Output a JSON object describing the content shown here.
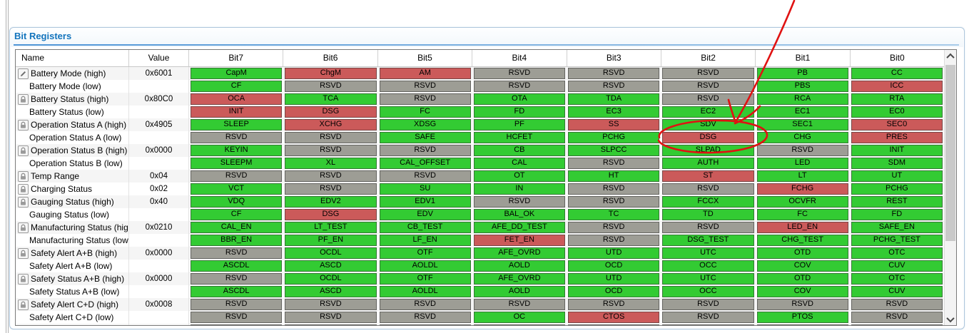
{
  "panel": {
    "title": "Bit Registers"
  },
  "colors": {
    "set": "#cb5a5a",
    "clear": "#33cb33",
    "rsvd": "#9d9d95",
    "title_accent": "#1374bd",
    "annotation": "#e01212"
  },
  "annotation": {
    "shape": "arrow-and-ellipse",
    "highlighted_bit": "DSG"
  },
  "table": {
    "columns": [
      "Name",
      "Value",
      "Bit7",
      "Bit6",
      "Bit5",
      "Bit4",
      "Bit3",
      "Bit2",
      "Bit1",
      "Bit0"
    ],
    "rows": [
      {
        "name": "Battery Mode (high)",
        "value": "0x6001",
        "icon": "pencil",
        "bits": [
          {
            "label": "CapM",
            "state": "clear"
          },
          {
            "label": "ChgM",
            "state": "set"
          },
          {
            "label": "AM",
            "state": "set"
          },
          {
            "label": "RSVD",
            "state": "rsvd"
          },
          {
            "label": "RSVD",
            "state": "rsvd"
          },
          {
            "label": "RSVD",
            "state": "rsvd"
          },
          {
            "label": "PB",
            "state": "clear"
          },
          {
            "label": "CC",
            "state": "clear"
          }
        ]
      },
      {
        "name": "Battery Mode (low)",
        "value": "",
        "icon": null,
        "bits": [
          {
            "label": "CF",
            "state": "clear"
          },
          {
            "label": "RSVD",
            "state": "rsvd"
          },
          {
            "label": "RSVD",
            "state": "rsvd"
          },
          {
            "label": "RSVD",
            "state": "rsvd"
          },
          {
            "label": "RSVD",
            "state": "rsvd"
          },
          {
            "label": "RSVD",
            "state": "rsvd"
          },
          {
            "label": "PBS",
            "state": "clear"
          },
          {
            "label": "ICC",
            "state": "set"
          }
        ]
      },
      {
        "name": "Battery Status (high)",
        "value": "0x80C0",
        "icon": "lock",
        "bits": [
          {
            "label": "OCA",
            "state": "set"
          },
          {
            "label": "TCA",
            "state": "clear"
          },
          {
            "label": "RSVD",
            "state": "rsvd"
          },
          {
            "label": "OTA",
            "state": "clear"
          },
          {
            "label": "TDA",
            "state": "clear"
          },
          {
            "label": "RSVD",
            "state": "rsvd"
          },
          {
            "label": "RCA",
            "state": "clear"
          },
          {
            "label": "RTA",
            "state": "clear"
          }
        ]
      },
      {
        "name": "Battery Status (low)",
        "value": "",
        "icon": null,
        "bits": [
          {
            "label": "INIT",
            "state": "set"
          },
          {
            "label": "DSG",
            "state": "set"
          },
          {
            "label": "FC",
            "state": "clear"
          },
          {
            "label": "FD",
            "state": "clear"
          },
          {
            "label": "EC3",
            "state": "clear"
          },
          {
            "label": "EC2",
            "state": "clear"
          },
          {
            "label": "EC1",
            "state": "clear"
          },
          {
            "label": "EC0",
            "state": "clear"
          }
        ]
      },
      {
        "name": "Operation Status A (high)",
        "value": "0x4905",
        "icon": "lock",
        "bits": [
          {
            "label": "SLEEP",
            "state": "clear"
          },
          {
            "label": "XCHG",
            "state": "set"
          },
          {
            "label": "XDSG",
            "state": "clear"
          },
          {
            "label": "PF",
            "state": "clear"
          },
          {
            "label": "SS",
            "state": "set"
          },
          {
            "label": "SDV",
            "state": "clear"
          },
          {
            "label": "SEC1",
            "state": "clear"
          },
          {
            "label": "SEC0",
            "state": "set"
          }
        ]
      },
      {
        "name": "Operation Status A (low)",
        "value": "",
        "icon": null,
        "bits": [
          {
            "label": "RSVD",
            "state": "rsvd"
          },
          {
            "label": "RSVD",
            "state": "rsvd"
          },
          {
            "label": "SAFE",
            "state": "clear"
          },
          {
            "label": "HCFET",
            "state": "clear"
          },
          {
            "label": "PCHG",
            "state": "clear"
          },
          {
            "label": "DSG",
            "state": "set"
          },
          {
            "label": "CHG",
            "state": "clear"
          },
          {
            "label": "PRES",
            "state": "set"
          }
        ]
      },
      {
        "name": "Operation Status B (high)",
        "value": "0x0000",
        "icon": "lock",
        "bits": [
          {
            "label": "KEYIN",
            "state": "clear"
          },
          {
            "label": "RSVD",
            "state": "rsvd"
          },
          {
            "label": "RSVD",
            "state": "rsvd"
          },
          {
            "label": "CB",
            "state": "clear"
          },
          {
            "label": "SLPCC",
            "state": "clear"
          },
          {
            "label": "SLPAD",
            "state": "clear"
          },
          {
            "label": "RSVD",
            "state": "rsvd"
          },
          {
            "label": "INIT",
            "state": "clear"
          }
        ]
      },
      {
        "name": "Operation Status B (low)",
        "value": "",
        "icon": null,
        "bits": [
          {
            "label": "SLEEPM",
            "state": "clear"
          },
          {
            "label": "XL",
            "state": "clear"
          },
          {
            "label": "CAL_OFFSET",
            "state": "clear"
          },
          {
            "label": "CAL",
            "state": "clear"
          },
          {
            "label": "RSVD",
            "state": "rsvd"
          },
          {
            "label": "AUTH",
            "state": "clear"
          },
          {
            "label": "LED",
            "state": "clear"
          },
          {
            "label": "SDM",
            "state": "clear"
          }
        ]
      },
      {
        "name": "Temp Range",
        "value": "0x04",
        "icon": "lock",
        "bits": [
          {
            "label": "RSVD",
            "state": "rsvd"
          },
          {
            "label": "RSVD",
            "state": "rsvd"
          },
          {
            "label": "RSVD",
            "state": "rsvd"
          },
          {
            "label": "OT",
            "state": "clear"
          },
          {
            "label": "HT",
            "state": "clear"
          },
          {
            "label": "ST",
            "state": "set"
          },
          {
            "label": "LT",
            "state": "clear"
          },
          {
            "label": "UT",
            "state": "clear"
          }
        ]
      },
      {
        "name": "Charging Status",
        "value": "0x02",
        "icon": "lock",
        "bits": [
          {
            "label": "VCT",
            "state": "clear"
          },
          {
            "label": "RSVD",
            "state": "rsvd"
          },
          {
            "label": "SU",
            "state": "clear"
          },
          {
            "label": "IN",
            "state": "clear"
          },
          {
            "label": "RSVD",
            "state": "rsvd"
          },
          {
            "label": "RSVD",
            "state": "rsvd"
          },
          {
            "label": "FCHG",
            "state": "set"
          },
          {
            "label": "PCHG",
            "state": "clear"
          }
        ]
      },
      {
        "name": "Gauging Status (high)",
        "value": "0x40",
        "icon": "lock",
        "bits": [
          {
            "label": "VDQ",
            "state": "clear"
          },
          {
            "label": "EDV2",
            "state": "clear"
          },
          {
            "label": "EDV1",
            "state": "clear"
          },
          {
            "label": "RSVD",
            "state": "rsvd"
          },
          {
            "label": "RSVD",
            "state": "rsvd"
          },
          {
            "label": "FCCX",
            "state": "clear"
          },
          {
            "label": "OCVFR",
            "state": "clear"
          },
          {
            "label": "REST",
            "state": "clear"
          }
        ]
      },
      {
        "name": "Gauging Status (low)",
        "value": "",
        "icon": null,
        "bits": [
          {
            "label": "CF",
            "state": "clear"
          },
          {
            "label": "DSG",
            "state": "set"
          },
          {
            "label": "EDV",
            "state": "clear"
          },
          {
            "label": "BAL_OK",
            "state": "clear"
          },
          {
            "label": "TC",
            "state": "clear"
          },
          {
            "label": "TD",
            "state": "clear"
          },
          {
            "label": "FC",
            "state": "clear"
          },
          {
            "label": "FD",
            "state": "clear"
          }
        ]
      },
      {
        "name": "Manufacturing Status (high)",
        "value": "0x0210",
        "icon": "lock",
        "bits": [
          {
            "label": "CAL_EN",
            "state": "clear"
          },
          {
            "label": "LT_TEST",
            "state": "clear"
          },
          {
            "label": "CB_TEST",
            "state": "clear"
          },
          {
            "label": "AFE_DD_TEST",
            "state": "clear"
          },
          {
            "label": "RSVD",
            "state": "rsvd"
          },
          {
            "label": "RSVD",
            "state": "rsvd"
          },
          {
            "label": "LED_EN",
            "state": "set"
          },
          {
            "label": "SAFE_EN",
            "state": "clear"
          }
        ]
      },
      {
        "name": "Manufacturing Status (low)",
        "value": "",
        "icon": null,
        "bits": [
          {
            "label": "BBR_EN",
            "state": "clear"
          },
          {
            "label": "PF_EN",
            "state": "clear"
          },
          {
            "label": "LF_EN",
            "state": "clear"
          },
          {
            "label": "FET_EN",
            "state": "set"
          },
          {
            "label": "RSVD",
            "state": "rsvd"
          },
          {
            "label": "DSG_TEST",
            "state": "clear"
          },
          {
            "label": "CHG_TEST",
            "state": "clear"
          },
          {
            "label": "PCHG_TEST",
            "state": "clear"
          }
        ]
      },
      {
        "name": "Safety Alert A+B (high)",
        "value": "0x0000",
        "icon": "lock",
        "bits": [
          {
            "label": "RSVD",
            "state": "rsvd"
          },
          {
            "label": "OCDL",
            "state": "clear"
          },
          {
            "label": "OTF",
            "state": "clear"
          },
          {
            "label": "AFE_OVRD",
            "state": "clear"
          },
          {
            "label": "UTD",
            "state": "clear"
          },
          {
            "label": "UTC",
            "state": "clear"
          },
          {
            "label": "OTD",
            "state": "clear"
          },
          {
            "label": "OTC",
            "state": "clear"
          }
        ]
      },
      {
        "name": "Safety Alert A+B (low)",
        "value": "",
        "icon": null,
        "bits": [
          {
            "label": "ASCDL",
            "state": "clear"
          },
          {
            "label": "ASCD",
            "state": "clear"
          },
          {
            "label": "AOLDL",
            "state": "clear"
          },
          {
            "label": "AOLD",
            "state": "clear"
          },
          {
            "label": "OCD",
            "state": "clear"
          },
          {
            "label": "OCC",
            "state": "clear"
          },
          {
            "label": "COV",
            "state": "clear"
          },
          {
            "label": "CUV",
            "state": "clear"
          }
        ]
      },
      {
        "name": "Safety Status A+B (high)",
        "value": "0x0000",
        "icon": "lock",
        "bits": [
          {
            "label": "RSVD",
            "state": "rsvd"
          },
          {
            "label": "OCDL",
            "state": "clear"
          },
          {
            "label": "OTF",
            "state": "clear"
          },
          {
            "label": "AFE_OVRD",
            "state": "clear"
          },
          {
            "label": "UTD",
            "state": "clear"
          },
          {
            "label": "UTC",
            "state": "clear"
          },
          {
            "label": "OTD",
            "state": "clear"
          },
          {
            "label": "OTC",
            "state": "clear"
          }
        ]
      },
      {
        "name": "Safety Status A+B (low)",
        "value": "",
        "icon": null,
        "bits": [
          {
            "label": "ASCDL",
            "state": "clear"
          },
          {
            "label": "ASCD",
            "state": "clear"
          },
          {
            "label": "AOLDL",
            "state": "clear"
          },
          {
            "label": "AOLD",
            "state": "clear"
          },
          {
            "label": "OCD",
            "state": "clear"
          },
          {
            "label": "OCC",
            "state": "clear"
          },
          {
            "label": "COV",
            "state": "clear"
          },
          {
            "label": "CUV",
            "state": "clear"
          }
        ]
      },
      {
        "name": "Safety Alert C+D (high)",
        "value": "0x0008",
        "icon": "lock",
        "bits": [
          {
            "label": "RSVD",
            "state": "rsvd"
          },
          {
            "label": "RSVD",
            "state": "rsvd"
          },
          {
            "label": "RSVD",
            "state": "rsvd"
          },
          {
            "label": "RSVD",
            "state": "rsvd"
          },
          {
            "label": "RSVD",
            "state": "rsvd"
          },
          {
            "label": "RSVD",
            "state": "rsvd"
          },
          {
            "label": "RSVD",
            "state": "rsvd"
          },
          {
            "label": "RSVD",
            "state": "rsvd"
          }
        ]
      },
      {
        "name": "Safety Alert C+D (low)",
        "value": "",
        "icon": null,
        "bits": [
          {
            "label": "RSVD",
            "state": "rsvd"
          },
          {
            "label": "RSVD",
            "state": "rsvd"
          },
          {
            "label": "RSVD",
            "state": "rsvd"
          },
          {
            "label": "OC",
            "state": "clear"
          },
          {
            "label": "CTOS",
            "state": "set"
          },
          {
            "label": "RSVD",
            "state": "rsvd"
          },
          {
            "label": "PTOS",
            "state": "clear"
          },
          {
            "label": "RSVD",
            "state": "rsvd"
          }
        ]
      },
      {
        "name": "",
        "value": "",
        "icon": "lock",
        "partial": true,
        "bits": [
          {
            "label": "",
            "state": "rsvd"
          },
          {
            "label": "",
            "state": "rsvd"
          },
          {
            "label": "",
            "state": "rsvd"
          },
          {
            "label": "",
            "state": "rsvd"
          },
          {
            "label": "",
            "state": "rsvd"
          },
          {
            "label": "",
            "state": "rsvd"
          },
          {
            "label": "",
            "state": "rsvd"
          },
          {
            "label": "",
            "state": "rsvd"
          }
        ]
      }
    ]
  }
}
